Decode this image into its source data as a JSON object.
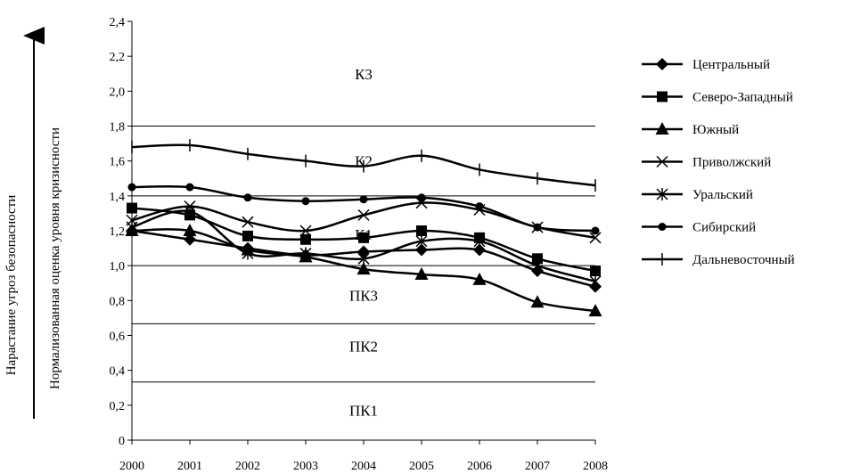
{
  "chart_data": {
    "type": "line",
    "x": [
      "2000",
      "2001",
      "2002",
      "2003",
      "2004",
      "2005",
      "2006",
      "2007",
      "2008"
    ],
    "ylim": [
      0,
      2.4
    ],
    "yticks": [
      "0",
      "0,2",
      "0,4",
      "0,6",
      "0,8",
      "1,0",
      "1,2",
      "1,4",
      "1,6",
      "1,8",
      "2,0",
      "2,2",
      "2,4"
    ],
    "ylabel_outer": "Нарастание угроз безопасности",
    "ylabel_inner": "Нормализованная оценка уровня кризисности",
    "thresholds": [
      0.333,
      0.667,
      1.0,
      1.4,
      1.8
    ],
    "zones": [
      {
        "label": "ПК1",
        "y": 0.17
      },
      {
        "label": "ПК2",
        "y": 0.54
      },
      {
        "label": "ПК3",
        "y": 0.83
      },
      {
        "label": "К1",
        "y": 1.18
      },
      {
        "label": "К2",
        "y": 1.6
      },
      {
        "label": "К3",
        "y": 2.1
      }
    ],
    "legend_position": "right",
    "series": [
      {
        "name": "Центральный",
        "marker": "diamond",
        "values": [
          1.2,
          1.15,
          1.1,
          1.06,
          1.08,
          1.09,
          1.09,
          0.97,
          0.88
        ]
      },
      {
        "name": "Северо-Западный",
        "marker": "square",
        "values": [
          1.33,
          1.29,
          1.17,
          1.15,
          1.16,
          1.2,
          1.16,
          1.04,
          0.97
        ]
      },
      {
        "name": "Южный",
        "marker": "triangle",
        "values": [
          1.2,
          1.2,
          1.09,
          1.05,
          0.98,
          0.95,
          0.92,
          0.79,
          0.74
        ]
      },
      {
        "name": "Приволжский",
        "marker": "x",
        "values": [
          1.26,
          1.34,
          1.25,
          1.2,
          1.29,
          1.36,
          1.32,
          1.22,
          1.16
        ]
      },
      {
        "name": "Уральский",
        "marker": "star",
        "values": [
          1.22,
          1.31,
          1.07,
          1.07,
          1.04,
          1.14,
          1.14,
          1.0,
          0.91
        ]
      },
      {
        "name": "Сибирский",
        "marker": "circle",
        "values": [
          1.45,
          1.45,
          1.39,
          1.37,
          1.38,
          1.39,
          1.34,
          1.22,
          1.2
        ]
      },
      {
        "name": "Дальневосточный",
        "marker": "plus",
        "values": [
          1.68,
          1.69,
          1.64,
          1.6,
          1.57,
          1.63,
          1.55,
          1.5,
          1.46
        ]
      }
    ]
  }
}
